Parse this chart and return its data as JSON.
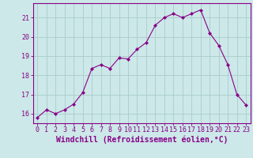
{
  "x": [
    0,
    1,
    2,
    3,
    4,
    5,
    6,
    7,
    8,
    9,
    10,
    11,
    12,
    13,
    14,
    15,
    16,
    17,
    18,
    19,
    20,
    21,
    22,
    23
  ],
  "y": [
    15.8,
    16.2,
    16.0,
    16.2,
    16.5,
    17.1,
    18.35,
    18.55,
    18.35,
    18.9,
    18.85,
    19.35,
    19.7,
    20.6,
    21.0,
    21.2,
    21.0,
    21.2,
    21.4,
    20.2,
    19.55,
    18.55,
    17.0,
    16.45
  ],
  "line_color": "#880088",
  "marker": "D",
  "marker_size": 2.2,
  "bg_color": "#cce8e8",
  "grid_color": "#aacccc",
  "label_color": "#880088",
  "xlabel": "Windchill (Refroidissement éolien,°C)",
  "xlim": [
    -0.5,
    23.5
  ],
  "ylim": [
    15.5,
    21.75
  ],
  "yticks": [
    16,
    17,
    18,
    19,
    20,
    21
  ],
  "xticks": [
    0,
    1,
    2,
    3,
    4,
    5,
    6,
    7,
    8,
    9,
    10,
    11,
    12,
    13,
    14,
    15,
    16,
    17,
    18,
    19,
    20,
    21,
    22,
    23
  ],
  "xtick_labels": [
    "0",
    "1",
    "2",
    "3",
    "4",
    "5",
    "6",
    "7",
    "8",
    "9",
    "10",
    "11",
    "12",
    "13",
    "14",
    "15",
    "16",
    "17",
    "18",
    "19",
    "20",
    "21",
    "22",
    "23"
  ],
  "tick_fontsize": 6.0,
  "xlabel_fontsize": 7.0
}
